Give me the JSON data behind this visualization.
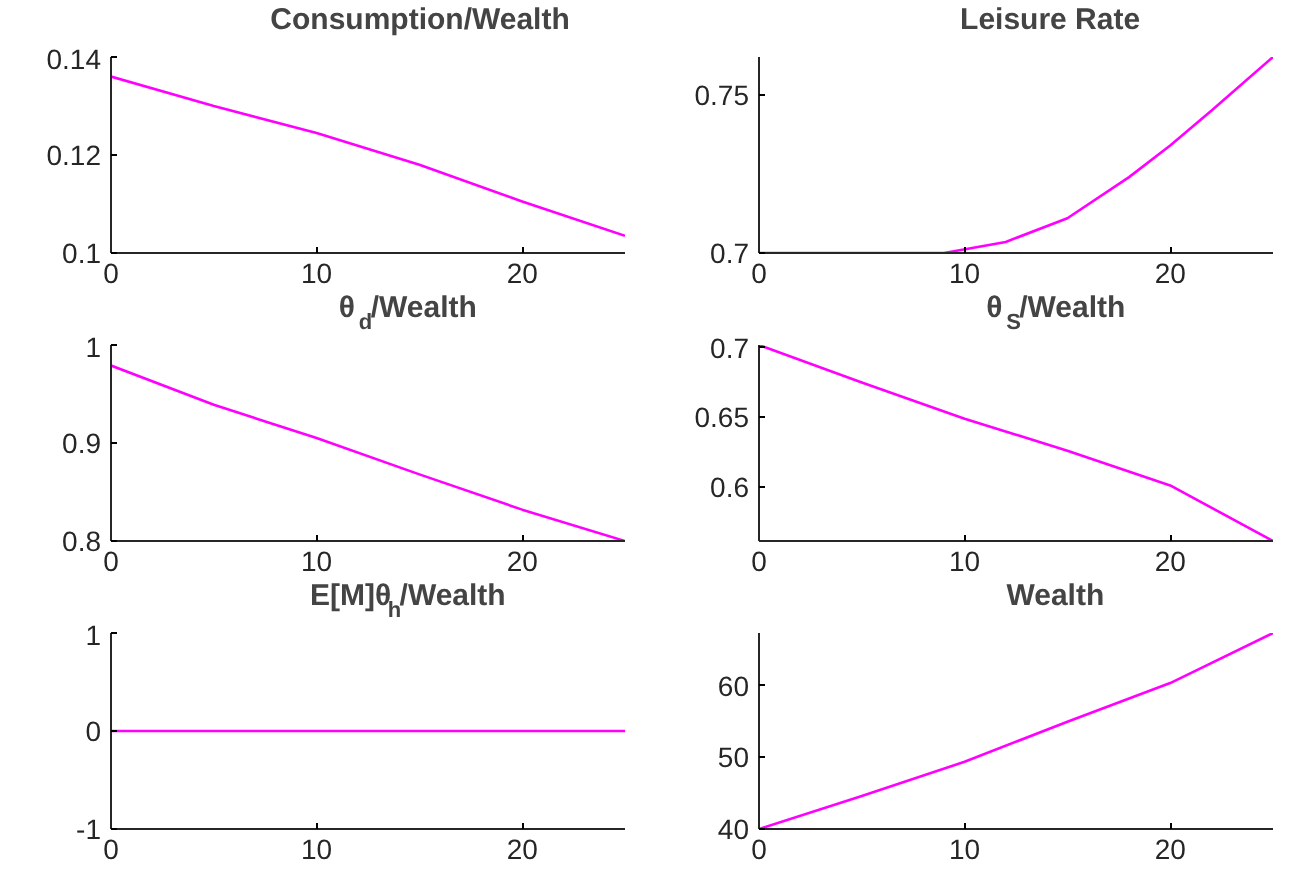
{
  "chart_data": [
    {
      "type": "line",
      "title": "Consumption/Wealth",
      "x": [
        0,
        5,
        10,
        15,
        20,
        25
      ],
      "series": [
        {
          "color": "#ff00ff",
          "values": [
            0.136,
            0.13,
            0.1245,
            0.118,
            0.1105,
            0.1035
          ]
        }
      ],
      "xlim": [
        0,
        25
      ],
      "xticks": [
        0,
        10,
        20
      ],
      "ylim": [
        0.1,
        0.14
      ],
      "yticks": [
        0.1,
        0.12,
        0.14
      ],
      "grid": false
    },
    {
      "type": "line",
      "title": "Leisure Rate",
      "x": [
        0,
        9,
        12,
        15,
        18,
        20,
        22,
        25
      ],
      "series": [
        {
          "color": "#ff00ff",
          "values": [
            0.7,
            0.7,
            0.7035,
            0.711,
            0.724,
            0.734,
            0.745,
            0.762
          ]
        }
      ],
      "xlim": [
        0,
        25
      ],
      "xticks": [
        0,
        10,
        20
      ],
      "ylim": [
        0.7,
        0.762
      ],
      "yticks": [
        0.7,
        0.75
      ],
      "grid": false
    },
    {
      "type": "line",
      "title": "θ$_{d}$/Wealth",
      "x": [
        0,
        5,
        10,
        15,
        20,
        25
      ],
      "series": [
        {
          "color": "#ff00ff",
          "values": [
            0.979,
            0.939,
            0.905,
            0.868,
            0.832,
            0.8
          ]
        }
      ],
      "xlim": [
        0,
        25
      ],
      "xticks": [
        0,
        10,
        20
      ],
      "ylim": [
        0.8,
        1
      ],
      "yticks": [
        0.8,
        0.9,
        1
      ],
      "grid": false
    },
    {
      "type": "line",
      "title": "θ$_{S}$/Wealth",
      "x": [
        0,
        5,
        10,
        15,
        20,
        25
      ],
      "series": [
        {
          "color": "#ff00ff",
          "values": [
            0.702,
            0.675,
            0.649,
            0.626,
            0.601,
            0.561
          ]
        }
      ],
      "xlim": [
        0,
        25
      ],
      "xticks": [
        0,
        10,
        20
      ],
      "ylim": [
        0.561,
        0.702
      ],
      "yticks": [
        0.6,
        0.65,
        0.7
      ],
      "grid": false
    },
    {
      "type": "line",
      "title": "E[M]θ$_{h}$/Wealth",
      "x": [
        0,
        25
      ],
      "series": [
        {
          "color": "#ff00ff",
          "values": [
            0,
            0
          ]
        }
      ],
      "xlim": [
        0,
        25
      ],
      "xticks": [
        0,
        10,
        20
      ],
      "ylim": [
        -1,
        1
      ],
      "yticks": [
        -1,
        0,
        1
      ],
      "grid": false
    },
    {
      "type": "line",
      "title": "Wealth",
      "x": [
        0,
        5,
        10,
        15,
        20,
        25
      ],
      "series": [
        {
          "color": "#ff00ff",
          "values": [
            40,
            44.6,
            49.4,
            55,
            60.4,
            67.4
          ]
        }
      ],
      "xlim": [
        0,
        25
      ],
      "xticks": [
        0,
        10,
        20
      ],
      "ylim": [
        40,
        67.4
      ],
      "yticks": [
        40,
        50,
        60
      ],
      "grid": false
    }
  ]
}
